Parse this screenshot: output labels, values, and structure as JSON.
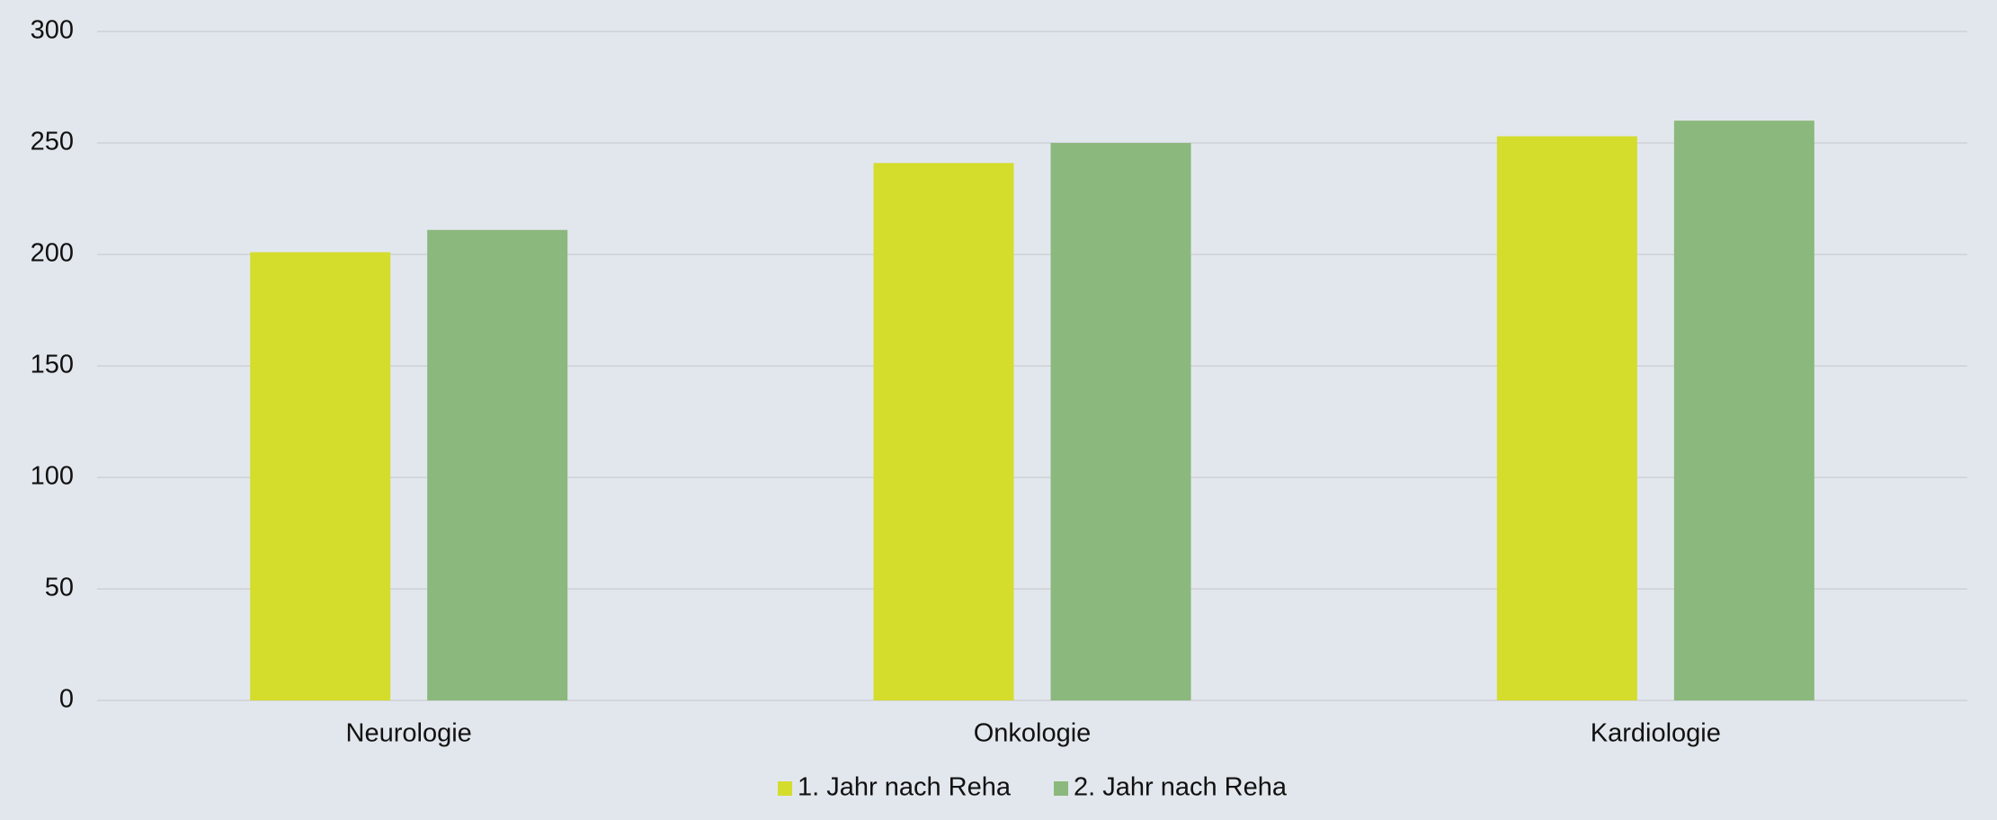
{
  "chart_data": {
    "type": "bar",
    "categories": [
      "Neurologie",
      "Onkologie",
      "Kardiologie"
    ],
    "series": [
      {
        "name": "1. Jahr nach Reha",
        "color": "#d4dc2c",
        "values": [
          201,
          241,
          253
        ]
      },
      {
        "name": "2. Jahr nach Reha",
        "color": "#8bb87c",
        "values": [
          211,
          250,
          260
        ]
      }
    ],
    "ylim": [
      0,
      300
    ],
    "yticks": [
      0,
      50,
      100,
      150,
      200,
      250,
      300
    ],
    "grid": true,
    "legend": "bottom"
  }
}
